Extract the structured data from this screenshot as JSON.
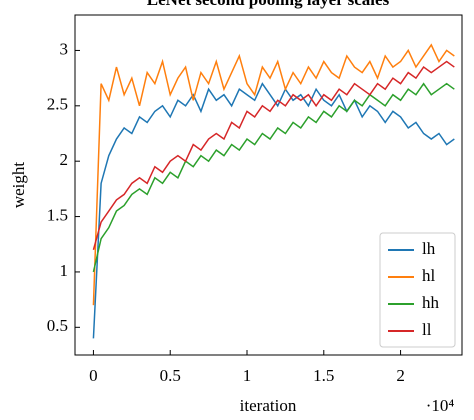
{
  "chart_data": {
    "type": "line",
    "title": "LeNet second pooling layer scales",
    "xlabel": "iteration",
    "ylabel": "weight",
    "x_offset_label": "·10⁴",
    "x": [
      0,
      0.05,
      0.1,
      0.15,
      0.2,
      0.25,
      0.3,
      0.35,
      0.4,
      0.45,
      0.5,
      0.55,
      0.6,
      0.65,
      0.7,
      0.75,
      0.8,
      0.85,
      0.9,
      0.95,
      1,
      1.05,
      1.1,
      1.15,
      1.2,
      1.25,
      1.3,
      1.35,
      1.4,
      1.45,
      1.5,
      1.55,
      1.6,
      1.65,
      1.7,
      1.75,
      1.8,
      1.85,
      1.9,
      1.95,
      2,
      2.05,
      2.1,
      2.15,
      2.2,
      2.25,
      2.3,
      2.35
    ],
    "series": [
      {
        "name": "lh",
        "color": "#1f77b4",
        "values": [
          0.4,
          1.8,
          2.05,
          2.2,
          2.3,
          2.25,
          2.4,
          2.35,
          2.45,
          2.5,
          2.4,
          2.55,
          2.5,
          2.6,
          2.45,
          2.65,
          2.55,
          2.6,
          2.5,
          2.65,
          2.6,
          2.55,
          2.7,
          2.6,
          2.5,
          2.65,
          2.55,
          2.6,
          2.5,
          2.65,
          2.55,
          2.5,
          2.6,
          2.45,
          2.55,
          2.4,
          2.5,
          2.45,
          2.35,
          2.45,
          2.4,
          2.3,
          2.35,
          2.25,
          2.2,
          2.25,
          2.15,
          2.2
        ]
      },
      {
        "name": "hl",
        "color": "#ff7f0e",
        "values": [
          0.7,
          2.7,
          2.55,
          2.85,
          2.6,
          2.75,
          2.5,
          2.8,
          2.7,
          2.9,
          2.6,
          2.75,
          2.85,
          2.55,
          2.8,
          2.7,
          2.9,
          2.65,
          2.8,
          2.95,
          2.7,
          2.6,
          2.85,
          2.75,
          2.9,
          2.65,
          2.8,
          2.7,
          2.85,
          2.75,
          2.9,
          2.8,
          2.75,
          2.95,
          2.85,
          2.8,
          2.9,
          2.75,
          2.95,
          2.85,
          2.9,
          3.0,
          2.85,
          2.95,
          3.05,
          2.9,
          3.0,
          2.95
        ]
      },
      {
        "name": "hh",
        "color": "#2ca02c",
        "values": [
          1.0,
          1.3,
          1.4,
          1.55,
          1.6,
          1.7,
          1.75,
          1.7,
          1.85,
          1.8,
          1.9,
          1.85,
          2.0,
          1.95,
          2.05,
          2.0,
          2.1,
          2.05,
          2.15,
          2.1,
          2.2,
          2.15,
          2.25,
          2.2,
          2.3,
          2.25,
          2.35,
          2.3,
          2.4,
          2.35,
          2.45,
          2.4,
          2.5,
          2.45,
          2.55,
          2.5,
          2.6,
          2.55,
          2.5,
          2.6,
          2.55,
          2.65,
          2.6,
          2.7,
          2.6,
          2.65,
          2.7,
          2.65
        ]
      },
      {
        "name": "ll",
        "color": "#d62728",
        "values": [
          1.2,
          1.45,
          1.55,
          1.65,
          1.7,
          1.8,
          1.85,
          1.8,
          1.95,
          1.9,
          2.0,
          2.05,
          2.0,
          2.15,
          2.1,
          2.2,
          2.25,
          2.2,
          2.35,
          2.3,
          2.45,
          2.4,
          2.5,
          2.45,
          2.55,
          2.5,
          2.6,
          2.55,
          2.6,
          2.5,
          2.6,
          2.55,
          2.65,
          2.6,
          2.7,
          2.65,
          2.6,
          2.7,
          2.65,
          2.75,
          2.7,
          2.8,
          2.75,
          2.85,
          2.8,
          2.85,
          2.9,
          2.85
        ]
      }
    ],
    "xlim": [
      -0.12,
      2.4
    ],
    "xticks": [
      0,
      0.5,
      1,
      1.5,
      2
    ],
    "ylim": [
      0.25,
      3.32
    ],
    "yticks": [
      0.5,
      1,
      1.5,
      2,
      2.5,
      3
    ],
    "legend": "lower right"
  }
}
